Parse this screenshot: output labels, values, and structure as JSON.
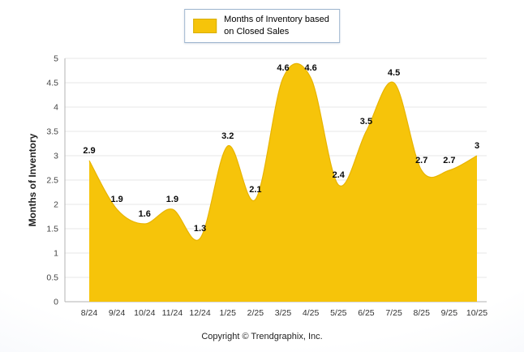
{
  "legend": {
    "lines": [
      "Months of Inventory based",
      "on Closed Sales"
    ]
  },
  "footer": {
    "text": "Copyright © Trendgraphix, Inc."
  },
  "chart_data": {
    "type": "area",
    "title": "",
    "legend_label": "Months of Inventory based on Closed Sales",
    "legend_position": "top-center",
    "ylabel": "Months of Inventory",
    "xlabel": "",
    "categories": [
      "8/24",
      "9/24",
      "10/24",
      "11/24",
      "12/24",
      "1/25",
      "2/25",
      "3/25",
      "4/25",
      "5/25",
      "6/25",
      "7/25",
      "8/25",
      "9/25",
      "10/25"
    ],
    "values": [
      2.9,
      1.9,
      1.6,
      1.9,
      1.3,
      3.2,
      2.1,
      4.6,
      4.6,
      2.4,
      3.5,
      4.5,
      2.7,
      2.7,
      3
    ],
    "ylim": [
      0,
      5
    ],
    "ytick_step": 0.5,
    "grid": true,
    "color": "#F6C40A",
    "outline_color": "#E8B400"
  }
}
